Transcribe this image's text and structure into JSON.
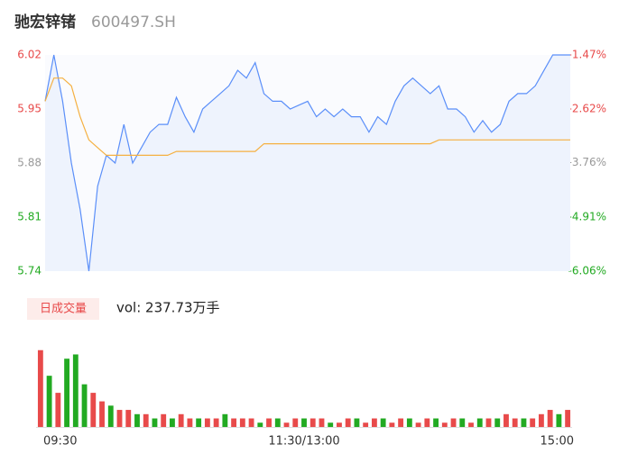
{
  "chart_data": [
    {
      "type": "line",
      "title": "驰宏锌锗",
      "subtitle": "600497.SH",
      "categories": [
        "09:30",
        null,
        null,
        null,
        null,
        null,
        null,
        null,
        null,
        null,
        null,
        null,
        null,
        null,
        null,
        null,
        null,
        null,
        null,
        null,
        null,
        null,
        null,
        null,
        null,
        null,
        null,
        null,
        null,
        null,
        "11:30/13:00",
        null,
        null,
        null,
        null,
        null,
        null,
        null,
        null,
        null,
        null,
        null,
        null,
        null,
        null,
        null,
        null,
        null,
        null,
        null,
        null,
        null,
        null,
        null,
        null,
        null,
        null,
        null,
        null,
        null,
        "15:00"
      ],
      "series": [
        {
          "color": "#5b8ff9",
          "values": [
            5.96,
            6.02,
            5.96,
            5.88,
            5.82,
            5.74,
            5.85,
            5.89,
            5.88,
            5.93,
            5.88,
            5.9,
            5.92,
            5.93,
            5.93,
            5.965,
            5.94,
            5.92,
            5.95,
            5.96,
            5.97,
            5.98,
            6.0,
            5.99,
            6.01,
            5.97,
            5.96,
            5.96,
            5.95,
            5.955,
            5.96,
            5.94,
            5.95,
            5.94,
            5.95,
            5.94,
            5.94,
            5.92,
            5.94,
            5.93,
            5.96,
            5.98,
            5.99,
            5.98,
            5.97,
            5.98,
            5.95,
            5.95,
            5.94,
            5.92,
            5.935,
            5.92,
            5.93,
            5.96,
            5.97,
            5.97,
            5.98,
            6.0,
            6.02,
            6.02,
            6.02
          ]
        },
        {
          "color": "#f5b041",
          "values": [
            5.96,
            5.99,
            5.99,
            5.98,
            5.94,
            5.91,
            5.9,
            5.89,
            5.89,
            5.89,
            5.89,
            5.89,
            5.89,
            5.89,
            5.89,
            5.895,
            5.895,
            5.895,
            5.895,
            5.895,
            5.895,
            5.895,
            5.895,
            5.895,
            5.895,
            5.905,
            5.905,
            5.905,
            5.905,
            5.905,
            5.905,
            5.905,
            5.905,
            5.905,
            5.905,
            5.905,
            5.905,
            5.905,
            5.905,
            5.905,
            5.905,
            5.905,
            5.905,
            5.905,
            5.905,
            5.91,
            5.91,
            5.91,
            5.91,
            5.91,
            5.91,
            5.91,
            5.91,
            5.91,
            5.91,
            5.91,
            5.91,
            5.91,
            5.91,
            5.91,
            5.91
          ]
        }
      ],
      "ylim": [
        5.74,
        6.02
      ],
      "yticks": [
        6.02,
        5.95,
        5.88,
        5.81,
        5.74
      ],
      "ytick_colors": [
        "#e84a4a",
        "#e84a4a",
        "#999999",
        "#22aa22",
        "#22aa22"
      ],
      "y2lim": [
        -6.06,
        -1.47
      ],
      "y2ticks": [
        {
          "value": -1.47,
          "label": "-1.47%"
        },
        {
          "value": -2.62,
          "label": "-2.62%"
        },
        {
          "value": -3.76,
          "label": "-3.76%"
        },
        {
          "value": -4.91,
          "label": "-4.91%"
        },
        {
          "value": -6.06,
          "label": "-6.06%"
        }
      ]
    },
    {
      "type": "bar",
      "title": "日成交量",
      "subtitle": "vol: 237.73万手",
      "values": [
        18,
        12,
        8,
        16,
        17,
        10,
        8,
        6,
        5,
        4,
        4,
        3,
        3,
        2,
        3,
        2,
        3,
        2,
        2,
        2,
        2,
        3,
        2,
        2,
        2,
        1,
        2,
        2,
        1,
        2,
        2,
        2,
        2,
        1,
        1,
        2,
        2,
        1,
        2,
        2,
        1,
        2,
        2,
        1,
        2,
        2,
        1,
        2,
        2,
        1,
        2,
        2,
        2,
        3,
        2,
        2,
        2,
        3,
        4,
        3,
        4
      ],
      "colors": [
        "#e84a4a",
        "#22aa22",
        "#e84a4a",
        "#22aa22",
        "#22aa22",
        "#22aa22",
        "#e84a4a",
        "#e84a4a",
        "#22aa22",
        "#e84a4a",
        "#e84a4a",
        "#22aa22",
        "#e84a4a",
        "#22aa22",
        "#e84a4a",
        "#22aa22",
        "#e84a4a",
        "#e84a4a",
        "#22aa22",
        "#e84a4a",
        "#e84a4a",
        "#22aa22",
        "#e84a4a",
        "#e84a4a",
        "#e84a4a",
        "#22aa22",
        "#e84a4a",
        "#22aa22",
        "#e84a4a",
        "#e84a4a",
        "#22aa22",
        "#e84a4a",
        "#e84a4a",
        "#22aa22",
        "#e84a4a",
        "#e84a4a",
        "#22aa22",
        "#e84a4a",
        "#e84a4a",
        "#22aa22",
        "#e84a4a",
        "#e84a4a",
        "#22aa22",
        "#e84a4a",
        "#e84a4a",
        "#22aa22",
        "#e84a4a",
        "#e84a4a",
        "#22aa22",
        "#e84a4a",
        "#22aa22",
        "#e84a4a",
        "#22aa22",
        "#e84a4a",
        "#e84a4a",
        "#22aa22",
        "#e84a4a",
        "#e84a4a",
        "#e84a4a",
        "#22aa22",
        "#e84a4a"
      ],
      "ylim": [
        0,
        19
      ]
    }
  ]
}
